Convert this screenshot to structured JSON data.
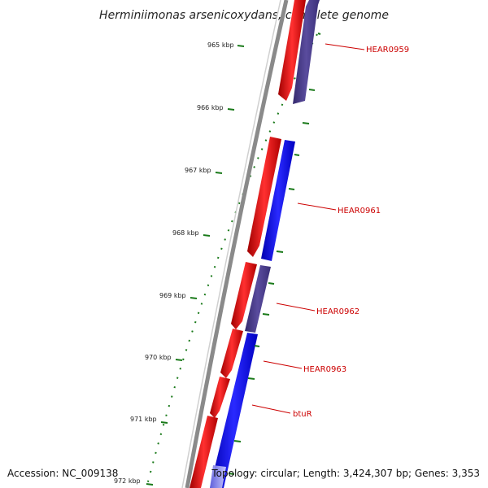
{
  "title": "Herminiimonas arsenicoxydans, complete genome",
  "footer": {
    "accession": "Accession: NC_009138",
    "topology": "Topology: circular; Length: 3,424,307 bp; Genes: 3,353"
  },
  "scale_ticks": [
    "965 kbp",
    "966 kbp",
    "967 kbp",
    "968 kbp",
    "969 kbp",
    "970 kbp",
    "971 kbp",
    "972 kbp"
  ],
  "gene_labels": [
    "HEAR0959",
    "HEAR0961",
    "HEAR0962",
    "HEAR0963",
    "btuR"
  ],
  "colors": {
    "backbone": "#7a7a7a",
    "forward_gene": "#ff0000",
    "reverse_gene": "#0000ff",
    "reverse_gene_alt": "#4a3d8a",
    "tick": "#1a7a1a",
    "label": "#cc0000"
  }
}
